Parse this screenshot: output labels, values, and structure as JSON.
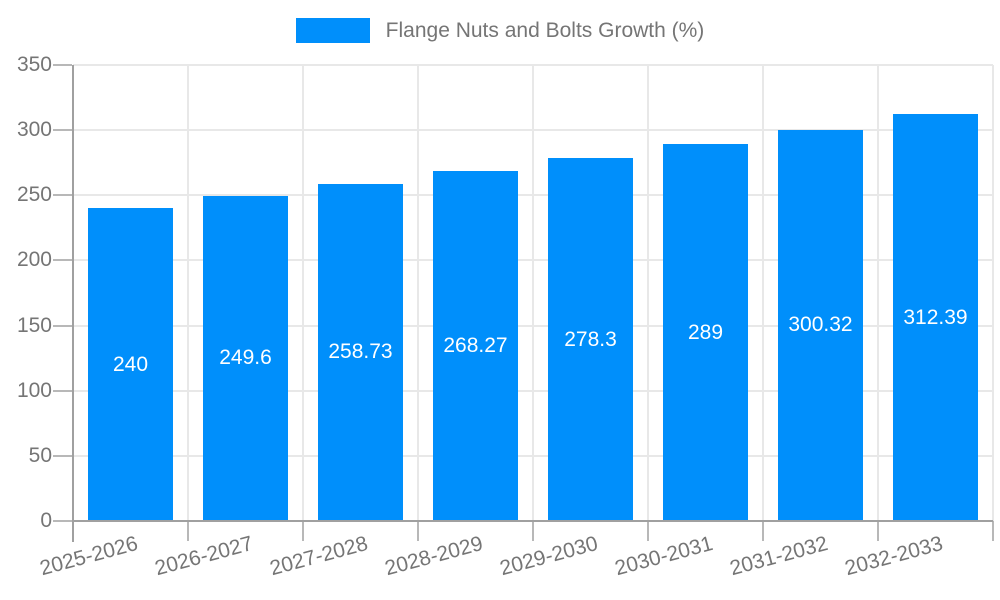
{
  "chart_data": {
    "type": "bar",
    "title": "Flange Nuts and Bolts Growth (%)",
    "legend": {
      "label": "Flange Nuts and Bolts Growth (%)",
      "position": "top"
    },
    "categories": [
      "2025-2026",
      "2026-2027",
      "2027-2028",
      "2028-2029",
      "2029-2030",
      "2030-2031",
      "2031-2032",
      "2032-2033"
    ],
    "series": [
      {
        "name": "Flange Nuts and Bolts Growth (%)",
        "values": [
          240,
          249.6,
          258.73,
          268.27,
          278.3,
          289,
          300.32,
          312.39
        ]
      }
    ],
    "value_labels": [
      "240",
      "249.6",
      "258.73",
      "268.27",
      "278.3",
      "289",
      "300.32",
      "312.39"
    ],
    "xlabel": "",
    "ylabel": "",
    "ylim": [
      0,
      350
    ],
    "ytick_step": 50,
    "ytick_labels": [
      "0",
      "50",
      "100",
      "150",
      "200",
      "250",
      "300",
      "350"
    ],
    "grid": true,
    "colors": {
      "bar": "#008FFB",
      "grid_line": "#e8e8e8",
      "axis_line": "#a0a0a0",
      "tick_mark": "#b8b8b8",
      "axis_label": "#757575",
      "value_label": "#ffffff",
      "background": "#ffffff"
    }
  }
}
